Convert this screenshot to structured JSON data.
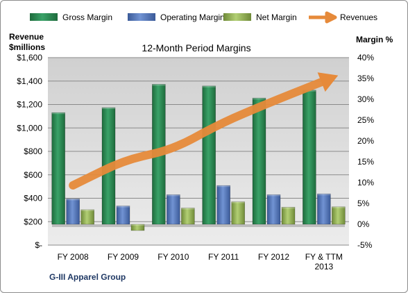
{
  "chart_data": {
    "type": "bar",
    "title": "12-Month Period Margins",
    "company_label": "G-III Apparel Group",
    "left_axis_title": [
      "Revenue",
      "$millions"
    ],
    "right_axis_title": "Margin %",
    "categories": [
      [
        "FY 2008"
      ],
      [
        "FY 2009"
      ],
      [
        "FY 2010"
      ],
      [
        "FY 2011"
      ],
      [
        "FY 2012"
      ],
      [
        "FY & TTM",
        "2013"
      ]
    ],
    "left_axis": {
      "min": 0,
      "max": 1600,
      "step": 200,
      "tick_labels": [
        "$-",
        "$200",
        "$400",
        "$600",
        "$800",
        "$1,000",
        "$1,200",
        "$1,400",
        "$1,600"
      ]
    },
    "right_axis": {
      "min": -5,
      "max": 40,
      "step": 5,
      "tick_labels": [
        "-5%",
        "0%",
        "5%",
        "10%",
        "15%",
        "20%",
        "25%",
        "30%",
        "35%",
        "40%"
      ]
    },
    "series": [
      {
        "name": "Gross Margin",
        "axis": "right",
        "kind": "bar",
        "color": "#2e8b57",
        "values": [
          26.8,
          28.0,
          33.6,
          33.2,
          30.3,
          32.2
        ]
      },
      {
        "name": "Operating Margin",
        "axis": "right",
        "kind": "bar",
        "color": "#5b7ec2",
        "values": [
          6.1,
          4.4,
          7.1,
          9.3,
          7.1,
          7.3
        ]
      },
      {
        "name": "Net Margin",
        "axis": "right",
        "kind": "bar",
        "color": "#98b954",
        "values": [
          3.5,
          -1.5,
          3.9,
          5.4,
          4.1,
          4.2
        ]
      },
      {
        "name": "Revenues",
        "axis": "left",
        "kind": "line",
        "color": "#e68a3a",
        "values": [
          510,
          720,
          820,
          1050,
          1230,
          1400
        ]
      }
    ],
    "grid": true,
    "legend_position": "top"
  }
}
